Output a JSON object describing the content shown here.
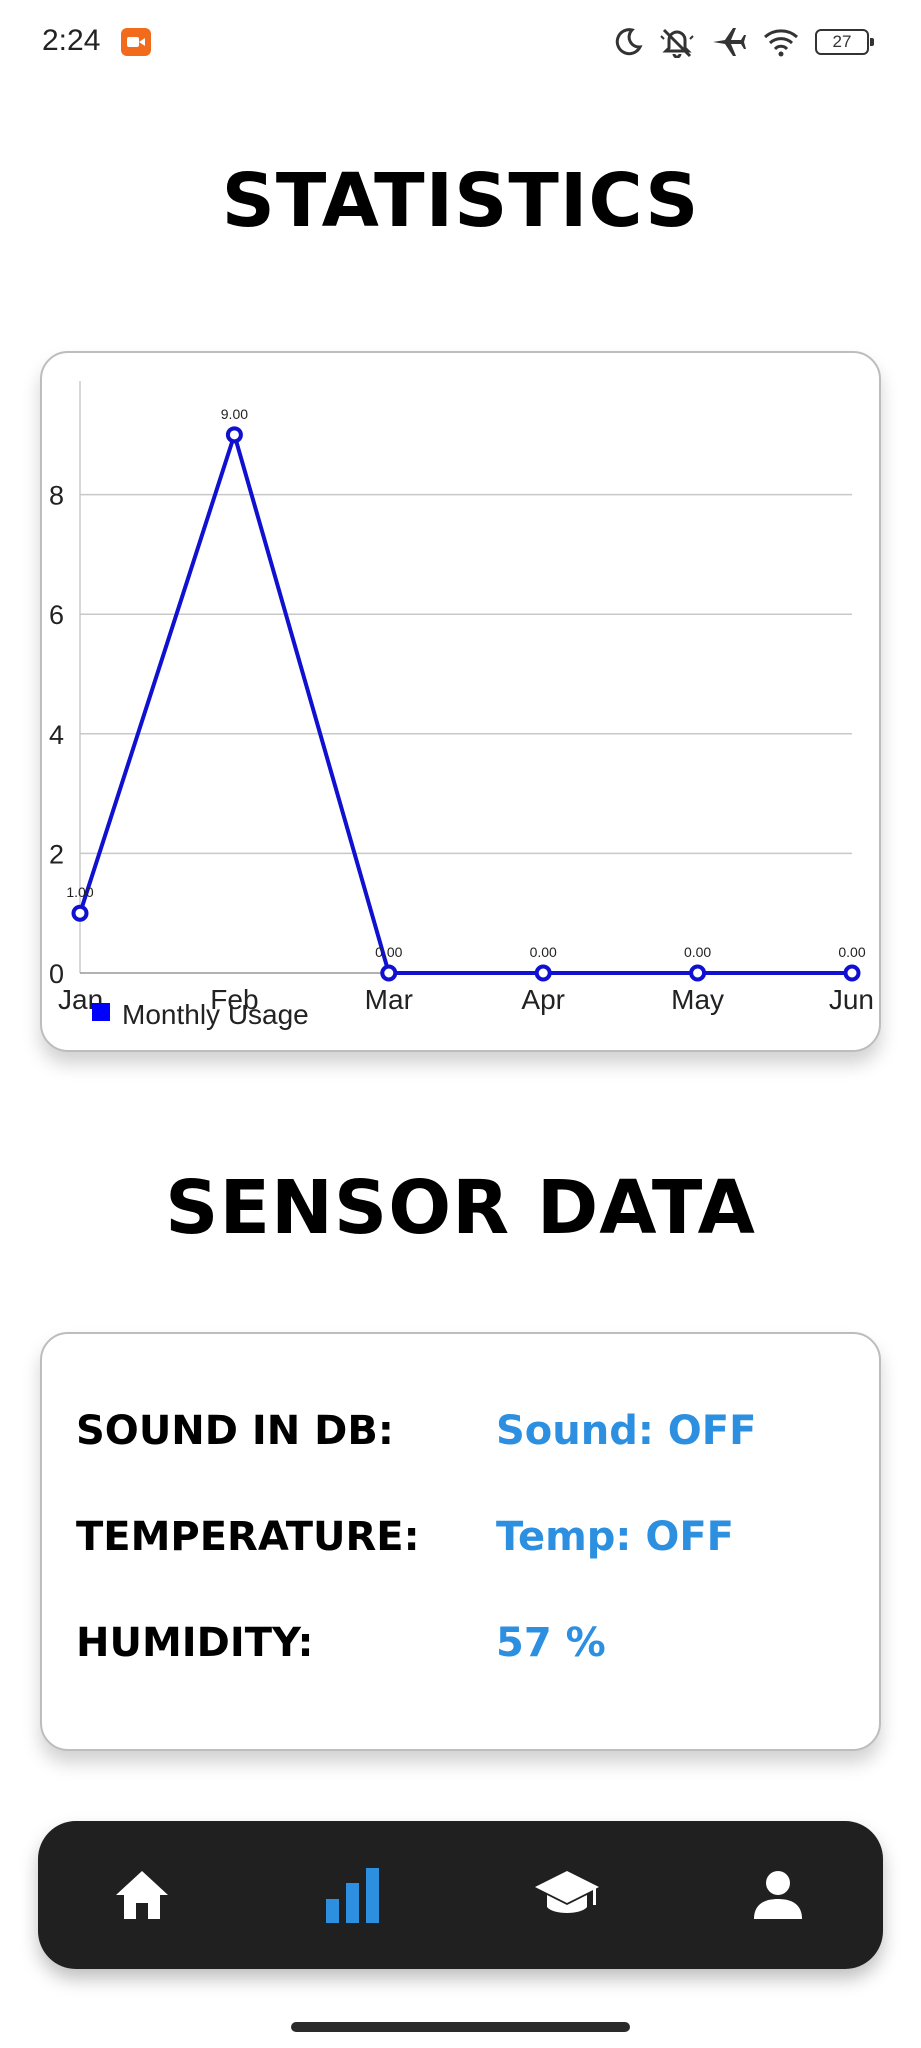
{
  "status_bar": {
    "time": "2:24",
    "battery_level": "27",
    "icons": [
      "screen-record-icon",
      "moon-icon",
      "bell-off-icon",
      "airplane-icon",
      "wifi-icon",
      "battery-icon"
    ]
  },
  "statistics": {
    "title": "STATISTICS"
  },
  "chart_data": {
    "type": "line",
    "categories": [
      "Jan",
      "Feb",
      "Mar",
      "Apr",
      "May",
      "Jun"
    ],
    "series": [
      {
        "name": "Monthly Usage",
        "values": [
          1,
          9,
          0,
          0,
          0,
          0
        ],
        "value_labels": [
          "1.00",
          "9.00",
          "0.00",
          "0.00",
          "0.00",
          "0.00"
        ],
        "color": "#1010d0"
      }
    ],
    "y_ticks": [
      "0",
      "2",
      "4",
      "6",
      "8"
    ],
    "ylim": [
      0,
      9.9
    ],
    "grid": true,
    "legend_position": "bottom-left"
  },
  "sensor": {
    "title": "SENSOR DATA",
    "rows": [
      {
        "label": "SOUND IN DB:",
        "value": "Sound: OFF"
      },
      {
        "label": "TEMPERATURE:",
        "value": "Temp: OFF"
      },
      {
        "label": "HUMIDITY:",
        "value": "57 %"
      }
    ],
    "value_color": "#2d8fe0"
  },
  "nav": {
    "items": [
      {
        "icon": "home-icon",
        "active": false
      },
      {
        "icon": "bar-chart-icon",
        "active": true
      },
      {
        "icon": "graduation-cap-icon",
        "active": false
      },
      {
        "icon": "person-icon",
        "active": false
      }
    ],
    "active_color": "#2d8fe0",
    "inactive_color": "#ffffff"
  }
}
